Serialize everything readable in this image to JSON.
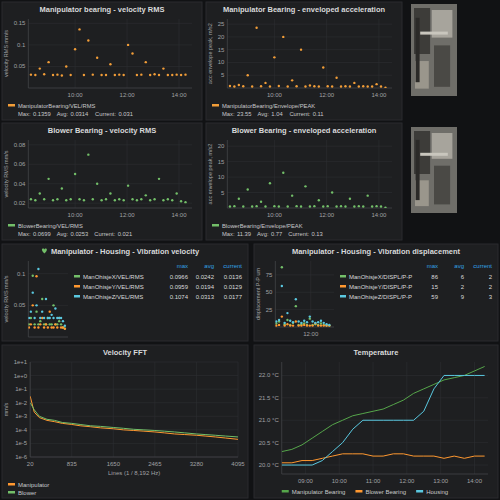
{
  "chart_data": [
    {
      "type": "scatter",
      "title": "Manipulator bearing - velocity RMS",
      "y_label": "velocity RMS mm/s",
      "marker": "circle",
      "x": [
        8.3,
        8.47,
        8.64,
        8.81,
        8.98,
        9.15,
        9.32,
        9.49,
        9.66,
        9.83,
        10,
        10.17,
        10.34,
        10.51,
        10.68,
        10.85,
        11.02,
        11.19,
        11.36,
        11.53,
        11.7,
        11.87,
        12.04,
        12.21,
        12.38,
        12.55,
        12.72,
        12.89,
        13.06,
        13.23,
        13.4,
        13.57,
        13.74,
        13.91,
        14.08,
        14.25
      ],
      "xlim": [
        8.2,
        14.5
      ],
      "xticks": [
        {
          "value": 10,
          "label": "10:00"
        },
        {
          "value": 12,
          "label": "12:00"
        },
        {
          "value": 14,
          "label": "14:00"
        }
      ],
      "ylim": [
        0,
        0.16
      ],
      "yticks": [
        0.05,
        0.1,
        0.15
      ],
      "grid": true,
      "legend": "bottom",
      "stat_labels": [
        "Max:",
        "Avg:",
        "Current:"
      ],
      "series": [
        {
          "name": "ManipulatorBearing/VEL/RMS",
          "color": "#f29d38",
          "max": 0.1359,
          "avg": 0.0314,
          "current": 0.031,
          "values": [
            0.031,
            0.03,
            0.045,
            0.032,
            0.06,
            0.03,
            0.031,
            0.029,
            0.05,
            0.03,
            0.09,
            0.1359,
            0.03,
            0.11,
            0.031,
            0.07,
            0.03,
            0.03,
            0.055,
            0.03,
            0.031,
            0.03,
            0.1,
            0.08,
            0.03,
            0.031,
            0.06,
            0.03,
            0.032,
            0.03,
            0.045,
            0.03,
            0.03,
            0.031,
            0.03,
            0.031
          ]
        }
      ]
    },
    {
      "type": "scatter",
      "title": "Manipulator Bearing - enveloped acceleration",
      "y_label": "acc envelope peak, m/s2",
      "marker": "circle",
      "x": [
        8.3,
        8.47,
        8.64,
        8.81,
        8.98,
        9.15,
        9.32,
        9.49,
        9.66,
        9.83,
        10,
        10.17,
        10.34,
        10.51,
        10.68,
        10.85,
        11.02,
        11.19,
        11.36,
        11.53,
        11.7,
        11.87,
        12.04,
        12.21,
        12.38,
        12.55,
        12.72,
        12.89,
        13.06,
        13.23,
        13.4,
        13.57,
        13.74,
        13.91,
        14.08,
        14.25
      ],
      "xlim": [
        8.2,
        14.5
      ],
      "xticks": [
        {
          "value": 10,
          "label": "10:00"
        },
        {
          "value": 12,
          "label": "12:00"
        },
        {
          "value": 14,
          "label": "14:00"
        }
      ],
      "ylim": [
        0,
        27
      ],
      "yticks": [
        5,
        10,
        15,
        20,
        25
      ],
      "grid": true,
      "legend": "bottom",
      "stat_labels": [
        "Max:",
        "Avg:",
        "Current:"
      ],
      "series": [
        {
          "name": "ManipulatorBearing/Envelope/PEAK",
          "color": "#f29d38",
          "max": 23.55,
          "avg": 1.04,
          "current": 0.11,
          "values": [
            0.8,
            0.6,
            1.2,
            0.7,
            5,
            0.6,
            23.55,
            0.7,
            2,
            0.6,
            12,
            0.8,
            20,
            0.6,
            3,
            0.7,
            15,
            0.6,
            1,
            0.7,
            0.6,
            8,
            0.7,
            0.6,
            4,
            0.6,
            0.7,
            0.6,
            2,
            0.6,
            0.7,
            0.6,
            0.6,
            1.5,
            0.6,
            0.11
          ]
        }
      ]
    },
    {
      "type": "scatter",
      "title": "Blower Bearing - velocity RMS",
      "y_label": "velocity RMS mm/s",
      "marker": "circle",
      "x": [
        8.3,
        8.47,
        8.64,
        8.81,
        8.98,
        9.15,
        9.32,
        9.49,
        9.66,
        9.83,
        10,
        10.17,
        10.34,
        10.51,
        10.68,
        10.85,
        11.02,
        11.19,
        11.36,
        11.53,
        11.7,
        11.87,
        12.04,
        12.21,
        12.38,
        12.55,
        12.72,
        12.89,
        13.06,
        13.23,
        13.4,
        13.57,
        13.74,
        13.91,
        14.08,
        14.25
      ],
      "xlim": [
        8.2,
        14.5
      ],
      "xticks": [
        {
          "value": 10,
          "label": "10:00"
        },
        {
          "value": 12,
          "label": "12:00"
        },
        {
          "value": 14,
          "label": "14:00"
        }
      ],
      "ylim": [
        0.015,
        0.085
      ],
      "yticks": [
        0.02,
        0.04,
        0.06,
        0.08
      ],
      "grid": true,
      "legend": "bottom",
      "stat_labels": [
        "Max:",
        "Avg:",
        "Current:"
      ],
      "series": [
        {
          "name": "BlowerBearing/VEL/RMS",
          "color": "#73bf69",
          "max": 0.0699,
          "avg": 0.0253,
          "current": 0.021,
          "values": [
            0.024,
            0.023,
            0.03,
            0.024,
            0.045,
            0.023,
            0.024,
            0.035,
            0.023,
            0.024,
            0.05,
            0.024,
            0.023,
            0.0699,
            0.024,
            0.04,
            0.023,
            0.024,
            0.03,
            0.023,
            0.024,
            0.023,
            0.038,
            0.024,
            0.023,
            0.024,
            0.028,
            0.023,
            0.024,
            0.045,
            0.023,
            0.024,
            0.023,
            0.03,
            0.022,
            0.021
          ]
        }
      ]
    },
    {
      "type": "scatter",
      "title": "Blower Bearing - enveloped acceleration",
      "y_label": "acc envelope peak, m/s2",
      "marker": "circle",
      "x": [
        8.3,
        8.47,
        8.64,
        8.81,
        8.98,
        9.15,
        9.32,
        9.49,
        9.66,
        9.83,
        10,
        10.17,
        10.34,
        10.51,
        10.68,
        10.85,
        11.02,
        11.19,
        11.36,
        11.53,
        11.7,
        11.87,
        12.04,
        12.21,
        12.38,
        12.55,
        12.72,
        12.89,
        13.06,
        13.23,
        13.4,
        13.57,
        13.74,
        13.91,
        14.08,
        14.25
      ],
      "xlim": [
        8.2,
        14.5
      ],
      "xticks": [
        {
          "value": 10,
          "label": "10:00"
        },
        {
          "value": 12,
          "label": "12:00"
        },
        {
          "value": 14,
          "label": "14:00"
        }
      ],
      "ylim": [
        0,
        22
      ],
      "yticks": [
        5,
        10,
        15,
        20
      ],
      "grid": true,
      "legend": "bottom",
      "stat_labels": [
        "Max:",
        "Avg:",
        "Current:"
      ],
      "series": [
        {
          "name": "BlowerBearing/Envelope/PEAK",
          "color": "#73bf69",
          "max": 11.39,
          "avg": 0.77,
          "current": 0.13,
          "values": [
            0.5,
            0.6,
            3,
            0.5,
            6,
            0.5,
            0.6,
            2,
            0.5,
            8,
            0.6,
            0.5,
            11.39,
            0.5,
            4,
            0.6,
            0.5,
            7,
            0.5,
            0.6,
            2.5,
            0.5,
            0.6,
            5,
            0.5,
            0.6,
            0.5,
            3,
            0.5,
            0.6,
            0.5,
            4,
            0.5,
            0.6,
            0.5,
            0.13
          ]
        }
      ]
    },
    {
      "type": "scatter",
      "title": "Manipulator - Housing - Vibration velocity",
      "y_label": "velocity RMS mm/s",
      "marker": "circle",
      "x": [
        8.3,
        8.6,
        8.9,
        9.2,
        9.5,
        9.8,
        10.1,
        10.4,
        10.7,
        11,
        11.3,
        11.6,
        11.9,
        12.2,
        12.5,
        12.8,
        13.1,
        13.4,
        13.7,
        14
      ],
      "xlim": [
        8.2,
        14.5
      ],
      "tick_labels": "y",
      "ylim": [
        0,
        0.12
      ],
      "yticks": [
        0.05,
        0.1
      ],
      "grid": true,
      "legend": "right",
      "stat_labels": [
        "max",
        "avg",
        "current"
      ],
      "series": [
        {
          "name": "ManOhisjeX/VEL/RMS",
          "color": "#73bf69",
          "max": 0.0966,
          "avg": 0.0242,
          "current": 0.0136,
          "values": [
            0.02,
            0.03,
            0.0966,
            0.02,
            0.04,
            0.02,
            0.025,
            0.06,
            0.02,
            0.02,
            0.03,
            0.02,
            0.02,
            0.05,
            0.02,
            0.02,
            0.025,
            0.02,
            0.015,
            0.0136
          ]
        },
        {
          "name": "ManOhisjeY/VEL/RMS",
          "color": "#ff9830",
          "max": 0.0959,
          "avg": 0.0194,
          "current": 0.0129,
          "values": [
            0.015,
            0.02,
            0.05,
            0.015,
            0.0959,
            0.015,
            0.02,
            0.03,
            0.015,
            0.02,
            0.015,
            0.04,
            0.015,
            0.015,
            0.02,
            0.015,
            0.03,
            0.015,
            0.015,
            0.0129
          ]
        },
        {
          "name": "ManOhisjeZ/VEL/RMS",
          "color": "#5ac8e0",
          "max": 0.1074,
          "avg": 0.0313,
          "current": 0.0177,
          "values": [
            0.03,
            0.04,
            0.07,
            0.03,
            0.05,
            0.1074,
            0.03,
            0.04,
            0.03,
            0.06,
            0.03,
            0.03,
            0.035,
            0.03,
            0.045,
            0.03,
            0.03,
            0.03,
            0.025,
            0.0177
          ]
        }
      ]
    },
    {
      "type": "scatter",
      "title": "Manipulator - Housing - Vibration displacement",
      "y_label": "displacement P-P um",
      "marker": "circle",
      "x": [
        8.3,
        8.6,
        8.9,
        9.2,
        9.5,
        9.8,
        10.1,
        10.4,
        10.7,
        11,
        11.3,
        11.6,
        11.9,
        12.2,
        12.5,
        12.8,
        13.1,
        13.4,
        13.7,
        14
      ],
      "xlim": [
        8.2,
        14.5
      ],
      "xticks": [
        {
          "value": 12,
          "label": "12:00"
        }
      ],
      "ylim": [
        0,
        95
      ],
      "yticks": [
        25,
        50,
        75
      ],
      "grid": true,
      "legend": "right",
      "stat_labels": [
        "max",
        "avg",
        "current"
      ],
      "series": [
        {
          "name": "ManOhisjeX/DISPL/P-P",
          "color": "#73bf69",
          "max": 86,
          "avg": 6,
          "current": 2,
          "values": [
            5,
            8,
            86,
            4,
            10,
            3,
            6,
            30,
            3,
            4,
            5,
            3,
            12,
            3,
            4,
            3,
            5,
            3,
            2,
            2
          ]
        },
        {
          "name": "ManOhisjeY/DISPL/P-P",
          "color": "#ff9830",
          "max": 15,
          "avg": 2,
          "current": 2,
          "values": [
            2,
            3,
            15,
            2,
            4,
            2,
            2,
            8,
            2,
            2,
            3,
            2,
            2,
            2,
            5,
            2,
            2,
            2,
            2,
            2
          ]
        },
        {
          "name": "ManOhisjeZ/DISPL/P-P",
          "color": "#5ac8e0",
          "max": 59,
          "avg": 9,
          "current": 3,
          "values": [
            8,
            10,
            59,
            6,
            20,
            9,
            7,
            40,
            8,
            6,
            9,
            7,
            15,
            8,
            6,
            7,
            9,
            6,
            4,
            3
          ]
        }
      ]
    },
    {
      "type": "line",
      "title": "Velocity FFT",
      "y_label": "mm/s",
      "x_label": "Lines (1 / 8,192 Hz)",
      "log": "y",
      "x": [
        20,
        100,
        200,
        350,
        500,
        650,
        835,
        1000,
        1200,
        1400,
        1650,
        1850,
        2050,
        2250,
        2465,
        2650,
        2850,
        3050,
        3280,
        3450,
        3650,
        3850,
        4095
      ],
      "xlim": [
        20,
        4095
      ],
      "xticks": [
        20,
        835,
        1650,
        2465,
        3280,
        4095
      ],
      "ylim": [
        1e-06,
        10
      ],
      "yticks": [
        {
          "value": 10,
          "label": "1e+1"
        },
        {
          "value": 1,
          "label": "1e+0"
        },
        {
          "value": 0.1,
          "label": "1e-1"
        },
        {
          "value": 0.01,
          "label": "1e-2"
        },
        {
          "value": 0.001,
          "label": "1e-3"
        },
        {
          "value": 0.0001,
          "label": "1e-4"
        },
        {
          "value": 1e-05,
          "label": "1e-5"
        },
        {
          "value": 1e-06,
          "label": "1e-6"
        }
      ],
      "grid": true,
      "legend": "bottom",
      "series": [
        {
          "name": "Manipulator",
          "color": "#ff9830",
          "values": [
            0.03,
            0.002,
            0.0008,
            0.0005,
            0.0004,
            0.0003,
            0.00025,
            0.0002,
            0.00017,
            0.00014,
            0.00012,
            0.0001,
            9e-05,
            8e-05,
            7e-05,
            6e-05,
            5e-05,
            4.5e-05,
            4e-05,
            3.5e-05,
            3e-05,
            2.5e-05,
            2e-05
          ]
        },
        {
          "name": "Blower",
          "color": "#73bf69",
          "values": [
            0.01,
            0.003,
            0.001,
            0.0006,
            0.0005,
            0.00035,
            0.0003,
            0.00025,
            0.0002,
            0.00018,
            0.00015,
            0.00013,
            0.00011,
            0.0001,
            9e-05,
            8e-05,
            7e-05,
            6e-05,
            5e-05,
            4.5e-05,
            4e-05,
            3.5e-05,
            3e-05
          ]
        }
      ]
    },
    {
      "type": "line",
      "title": "Temperature",
      "x": [
        8.3,
        8.6,
        8.9,
        9.2,
        9.5,
        9.8,
        10.1,
        10.4,
        10.7,
        11,
        11.3,
        11.6,
        11.9,
        12.2,
        12.5,
        12.8,
        13.1,
        13.4,
        13.7,
        14,
        14.3
      ],
      "xlim": [
        8.3,
        14.4
      ],
      "xticks": [
        {
          "value": 9,
          "label": "09:00"
        },
        {
          "value": 10,
          "label": "10:00"
        },
        {
          "value": 11,
          "label": "11:00"
        },
        {
          "value": 12,
          "label": "12:00"
        },
        {
          "value": 13,
          "label": "13:00"
        },
        {
          "value": 14,
          "label": "14:00"
        }
      ],
      "ylim": [
        19.8,
        22.3
      ],
      "yticks": [
        {
          "value": 20,
          "label": "20.0 °C"
        },
        {
          "value": 20.5,
          "label": "20.5 °C"
        },
        {
          "value": 21,
          "label": "21.0 °C"
        },
        {
          "value": 21.5,
          "label": "21.5 °C"
        },
        {
          "value": 22,
          "label": "22.0 °C"
        }
      ],
      "grid": true,
      "legend": "bottom",
      "series": [
        {
          "name": "Manipulator Bearing",
          "color": "#56a64b",
          "values": [
            20.3,
            20.35,
            20.45,
            20.6,
            20.75,
            20.9,
            21.0,
            21.1,
            21.15,
            21.2,
            21.25,
            21.35,
            21.45,
            21.6,
            21.7,
            21.8,
            21.9,
            21.95,
            22.0,
            22.1,
            22.2
          ]
        },
        {
          "name": "Blower Bearing",
          "color": "#ff9830",
          "values": [
            20.05,
            20.05,
            20.1,
            20.1,
            20.15,
            20.2,
            20.25,
            20.25,
            20.25,
            20.2,
            20.2,
            20.25,
            20.25,
            20.2,
            20.2,
            20.2,
            20.15,
            20.2,
            20.15,
            20.2,
            20.2
          ]
        },
        {
          "name": "Housing",
          "color": "#5ac8e0",
          "values": [
            20.0,
            20.0,
            20.0,
            20.0,
            20.1,
            20.3,
            20.5,
            20.8,
            21.0,
            21.0,
            21.0,
            21.0,
            21.0,
            21.0,
            21.2,
            21.7,
            22.0,
            22.0,
            22.0,
            22.0,
            22.0
          ]
        }
      ]
    }
  ]
}
